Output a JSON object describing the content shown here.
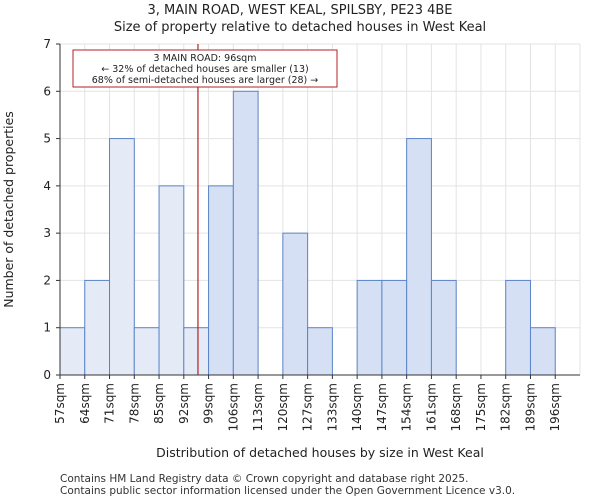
{
  "chart_data": {
    "type": "bar",
    "title": "3, MAIN ROAD, WEST KEAL, SPILSBY, PE23 4BE",
    "subtitle": "Size of property relative to detached houses in West Keal",
    "xlabel": "Distribution of detached houses by size in West Keal",
    "ylabel": "Number of detached properties",
    "categories": [
      "57sqm",
      "64sqm",
      "71sqm",
      "78sqm",
      "85sqm",
      "92sqm",
      "99sqm",
      "106sqm",
      "113sqm",
      "120sqm",
      "127sqm",
      "133sqm",
      "140sqm",
      "147sqm",
      "154sqm",
      "161sqm",
      "168sqm",
      "175sqm",
      "182sqm",
      "189sqm",
      "196sqm"
    ],
    "values": [
      1,
      2,
      5,
      1,
      4,
      1,
      4,
      6,
      0,
      3,
      1,
      0,
      2,
      2,
      5,
      2,
      0,
      0,
      2,
      1,
      0
    ],
    "highlight_before_index": 6,
    "ylim": [
      0,
      7
    ],
    "yticks": [
      0,
      1,
      2,
      3,
      4,
      5,
      6,
      7
    ],
    "grid": true,
    "marker": {
      "value_sqm": 96,
      "lines": [
        "3 MAIN ROAD: 96sqm",
        "← 32% of detached houses are smaller (13)",
        "68% of semi-detached houses are larger (28) →"
      ]
    },
    "colors": {
      "bar_before_fill": "#e4ebf7",
      "bar_after_fill": "#d6e0f4",
      "bar_stroke": "#5b84c8",
      "marker": "#b22222",
      "grid": "#e3e3e3"
    }
  },
  "footer": {
    "line1": "Contains HM Land Registry data © Crown copyright and database right 2025.",
    "line2": "Contains public sector information licensed under the Open Government Licence v3.0."
  }
}
